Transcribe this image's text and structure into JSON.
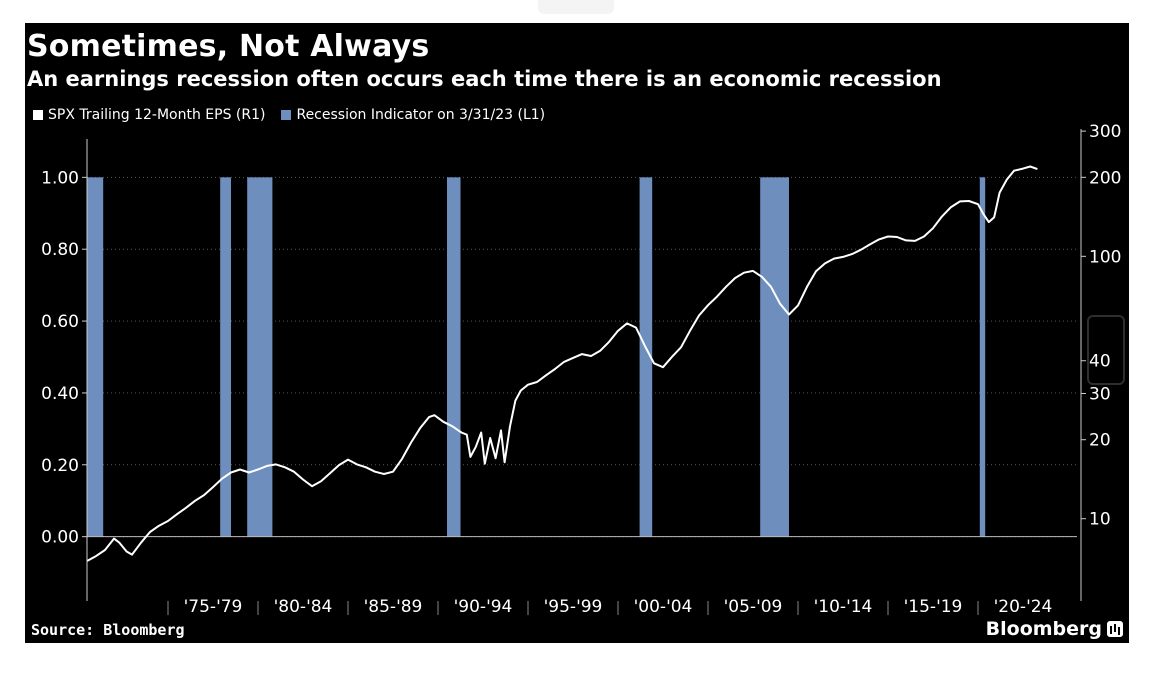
{
  "title": "Sometimes, Not Always",
  "subtitle": "An earnings recession often occurs each time there is an economic recession",
  "legend": [
    {
      "label": "SPX Trailing 12-Month EPS (R1)",
      "color": "#ffffff"
    },
    {
      "label": "Recession Indicator on 3/31/23 (L1)",
      "color": "#6e8fbe"
    }
  ],
  "source": "Source: Bloomberg",
  "brand": "Bloomberg",
  "colors": {
    "background": "#000000",
    "recession": "#6e8fbe",
    "eps": "#ffffff",
    "grid": "#555555"
  },
  "chart_data": {
    "type": "line",
    "x_range": [
      1970.5,
      2025.5
    ],
    "x_tick_labels": [
      "'75-'79",
      "'80-'84",
      "'85-'89",
      "'90-'94",
      "'95-'99",
      "'00-'04",
      "'05-'09",
      "'10-'14",
      "'15-'19",
      "'20-'24"
    ],
    "x_tick_ranges": [
      [
        1975,
        1979
      ],
      [
        1980,
        1984
      ],
      [
        1985,
        1989
      ],
      [
        1990,
        1994
      ],
      [
        1995,
        1999
      ],
      [
        2000,
        2004
      ],
      [
        2005,
        2009
      ],
      [
        2010,
        2014
      ],
      [
        2015,
        2019
      ],
      [
        2020,
        2024
      ]
    ],
    "left_axis": {
      "ticks": [
        0.0,
        0.2,
        0.4,
        0.6,
        0.8,
        1.0
      ],
      "tick_labels": [
        "0.00",
        "0.20",
        "0.40",
        "0.60",
        "0.80",
        "1.00"
      ],
      "ylim": [
        -0.09,
        1.09
      ]
    },
    "right_axis": {
      "scale": "log",
      "ticks": [
        10,
        20,
        30,
        40,
        100,
        200,
        300
      ],
      "tick_labels": [
        "10",
        "20",
        "30",
        "40",
        "100",
        "200",
        "300"
      ]
    },
    "recessions": [
      {
        "name": "Recession Indicator on 3/31/23 (L1)",
        "start": 1970.0,
        "end": 1971.4,
        "value": 1.0
      },
      {
        "name": "Recession Indicator on 3/31/23 (L1)",
        "start": 1977.9,
        "end": 1978.5,
        "value": 1.0
      },
      {
        "name": "Recession Indicator on 3/31/23 (L1)",
        "start": 1979.4,
        "end": 1980.8,
        "value": 1.0
      },
      {
        "name": "Recession Indicator on 3/31/23 (L1)",
        "start": 1990.5,
        "end": 1991.25,
        "value": 1.0
      },
      {
        "name": "Recession Indicator on 3/31/23 (L1)",
        "start": 2001.2,
        "end": 2001.9,
        "value": 1.0
      },
      {
        "name": "Recession Indicator on 3/31/23 (L1)",
        "start": 2007.9,
        "end": 2009.5,
        "value": 1.0
      },
      {
        "name": "Recession Indicator on 3/31/23 (L1)",
        "start": 2020.1,
        "end": 2020.4,
        "value": 1.0
      }
    ],
    "series": [
      {
        "name": "SPX Trailing 12-Month EPS (R1)",
        "axis": "right",
        "points": [
          [
            1969.2,
            5.6
          ],
          [
            1969.6,
            6.0
          ],
          [
            1970.0,
            6.4
          ],
          [
            1970.5,
            6.9
          ],
          [
            1971.0,
            7.2
          ],
          [
            1971.5,
            7.6
          ],
          [
            1972.0,
            8.4
          ],
          [
            1972.3,
            8.1
          ],
          [
            1972.7,
            7.5
          ],
          [
            1973.0,
            7.3
          ],
          [
            1973.5,
            8.1
          ],
          [
            1974.0,
            8.9
          ],
          [
            1974.5,
            9.4
          ],
          [
            1975.0,
            9.8
          ],
          [
            1975.5,
            10.4
          ],
          [
            1976.0,
            11.0
          ],
          [
            1976.5,
            11.7
          ],
          [
            1977.0,
            12.3
          ],
          [
            1977.5,
            13.2
          ],
          [
            1978.0,
            14.2
          ],
          [
            1978.5,
            15.0
          ],
          [
            1979.0,
            15.4
          ],
          [
            1979.5,
            15.0
          ],
          [
            1980.0,
            15.4
          ],
          [
            1980.5,
            15.9
          ],
          [
            1981.0,
            16.1
          ],
          [
            1981.5,
            15.7
          ],
          [
            1982.0,
            15.1
          ],
          [
            1982.5,
            14.1
          ],
          [
            1983.0,
            13.3
          ],
          [
            1983.5,
            13.9
          ],
          [
            1984.0,
            14.9
          ],
          [
            1984.5,
            16.0
          ],
          [
            1985.0,
            16.8
          ],
          [
            1985.5,
            16.1
          ],
          [
            1986.0,
            15.7
          ],
          [
            1986.5,
            15.1
          ],
          [
            1987.0,
            14.8
          ],
          [
            1987.5,
            15.1
          ],
          [
            1988.0,
            16.9
          ],
          [
            1988.5,
            19.5
          ],
          [
            1989.0,
            22.1
          ],
          [
            1989.5,
            24.4
          ],
          [
            1989.8,
            24.8
          ],
          [
            1990.3,
            23.4
          ],
          [
            1990.8,
            22.5
          ],
          [
            1991.3,
            21.3
          ],
          [
            1991.6,
            20.9
          ],
          [
            1991.8,
            17.2
          ],
          [
            1992.1,
            18.8
          ],
          [
            1992.4,
            21.3
          ],
          [
            1992.6,
            16.2
          ],
          [
            1992.9,
            20.3
          ],
          [
            1993.2,
            17.0
          ],
          [
            1993.5,
            21.7
          ],
          [
            1993.7,
            16.4
          ],
          [
            1994.0,
            22.5
          ],
          [
            1994.3,
            28.2
          ],
          [
            1994.6,
            30.8
          ],
          [
            1995.0,
            32.4
          ],
          [
            1995.5,
            33.2
          ],
          [
            1996.0,
            35.2
          ],
          [
            1996.5,
            37.2
          ],
          [
            1997.0,
            39.6
          ],
          [
            1997.5,
            41.0
          ],
          [
            1998.0,
            42.4
          ],
          [
            1998.5,
            41.7
          ],
          [
            1999.0,
            43.6
          ],
          [
            1999.5,
            47.2
          ],
          [
            2000.0,
            52.0
          ],
          [
            2000.5,
            55.5
          ],
          [
            2001.0,
            53.5
          ],
          [
            2001.5,
            45.5
          ],
          [
            2002.0,
            39.1
          ],
          [
            2002.5,
            37.8
          ],
          [
            2003.0,
            41.4
          ],
          [
            2003.5,
            45.0
          ],
          [
            2004.0,
            52.0
          ],
          [
            2004.5,
            59.5
          ],
          [
            2005.0,
            65.1
          ],
          [
            2005.5,
            70.2
          ],
          [
            2006.0,
            76.5
          ],
          [
            2006.5,
            82.6
          ],
          [
            2007.0,
            86.6
          ],
          [
            2007.5,
            88.0
          ],
          [
            2008.0,
            83.5
          ],
          [
            2008.5,
            76.5
          ],
          [
            2009.0,
            66.0
          ],
          [
            2009.5,
            60.0
          ],
          [
            2010.0,
            65.0
          ],
          [
            2010.5,
            76.5
          ],
          [
            2011.0,
            87.7
          ],
          [
            2011.5,
            94.0
          ],
          [
            2012.0,
            98.0
          ],
          [
            2012.5,
            99.5
          ],
          [
            2013.0,
            102.0
          ],
          [
            2013.5,
            106.0
          ],
          [
            2014.0,
            111.0
          ],
          [
            2014.5,
            116.0
          ],
          [
            2015.0,
            119.0
          ],
          [
            2015.5,
            118.5
          ],
          [
            2016.0,
            115.0
          ],
          [
            2016.5,
            114.5
          ],
          [
            2017.0,
            119.0
          ],
          [
            2017.5,
            128.0
          ],
          [
            2018.0,
            142.0
          ],
          [
            2018.5,
            154.0
          ],
          [
            2019.0,
            162.0
          ],
          [
            2019.5,
            162.5
          ],
          [
            2020.0,
            158.0
          ],
          [
            2020.3,
            145.0
          ],
          [
            2020.6,
            135.0
          ],
          [
            2020.9,
            141.0
          ],
          [
            2021.2,
            175.0
          ],
          [
            2021.6,
            196.0
          ],
          [
            2022.0,
            212.0
          ],
          [
            2022.5,
            216.0
          ],
          [
            2022.9,
            220.0
          ],
          [
            2023.3,
            215.0
          ]
        ]
      }
    ],
    "grid": true,
    "legend_position": "top-left"
  }
}
